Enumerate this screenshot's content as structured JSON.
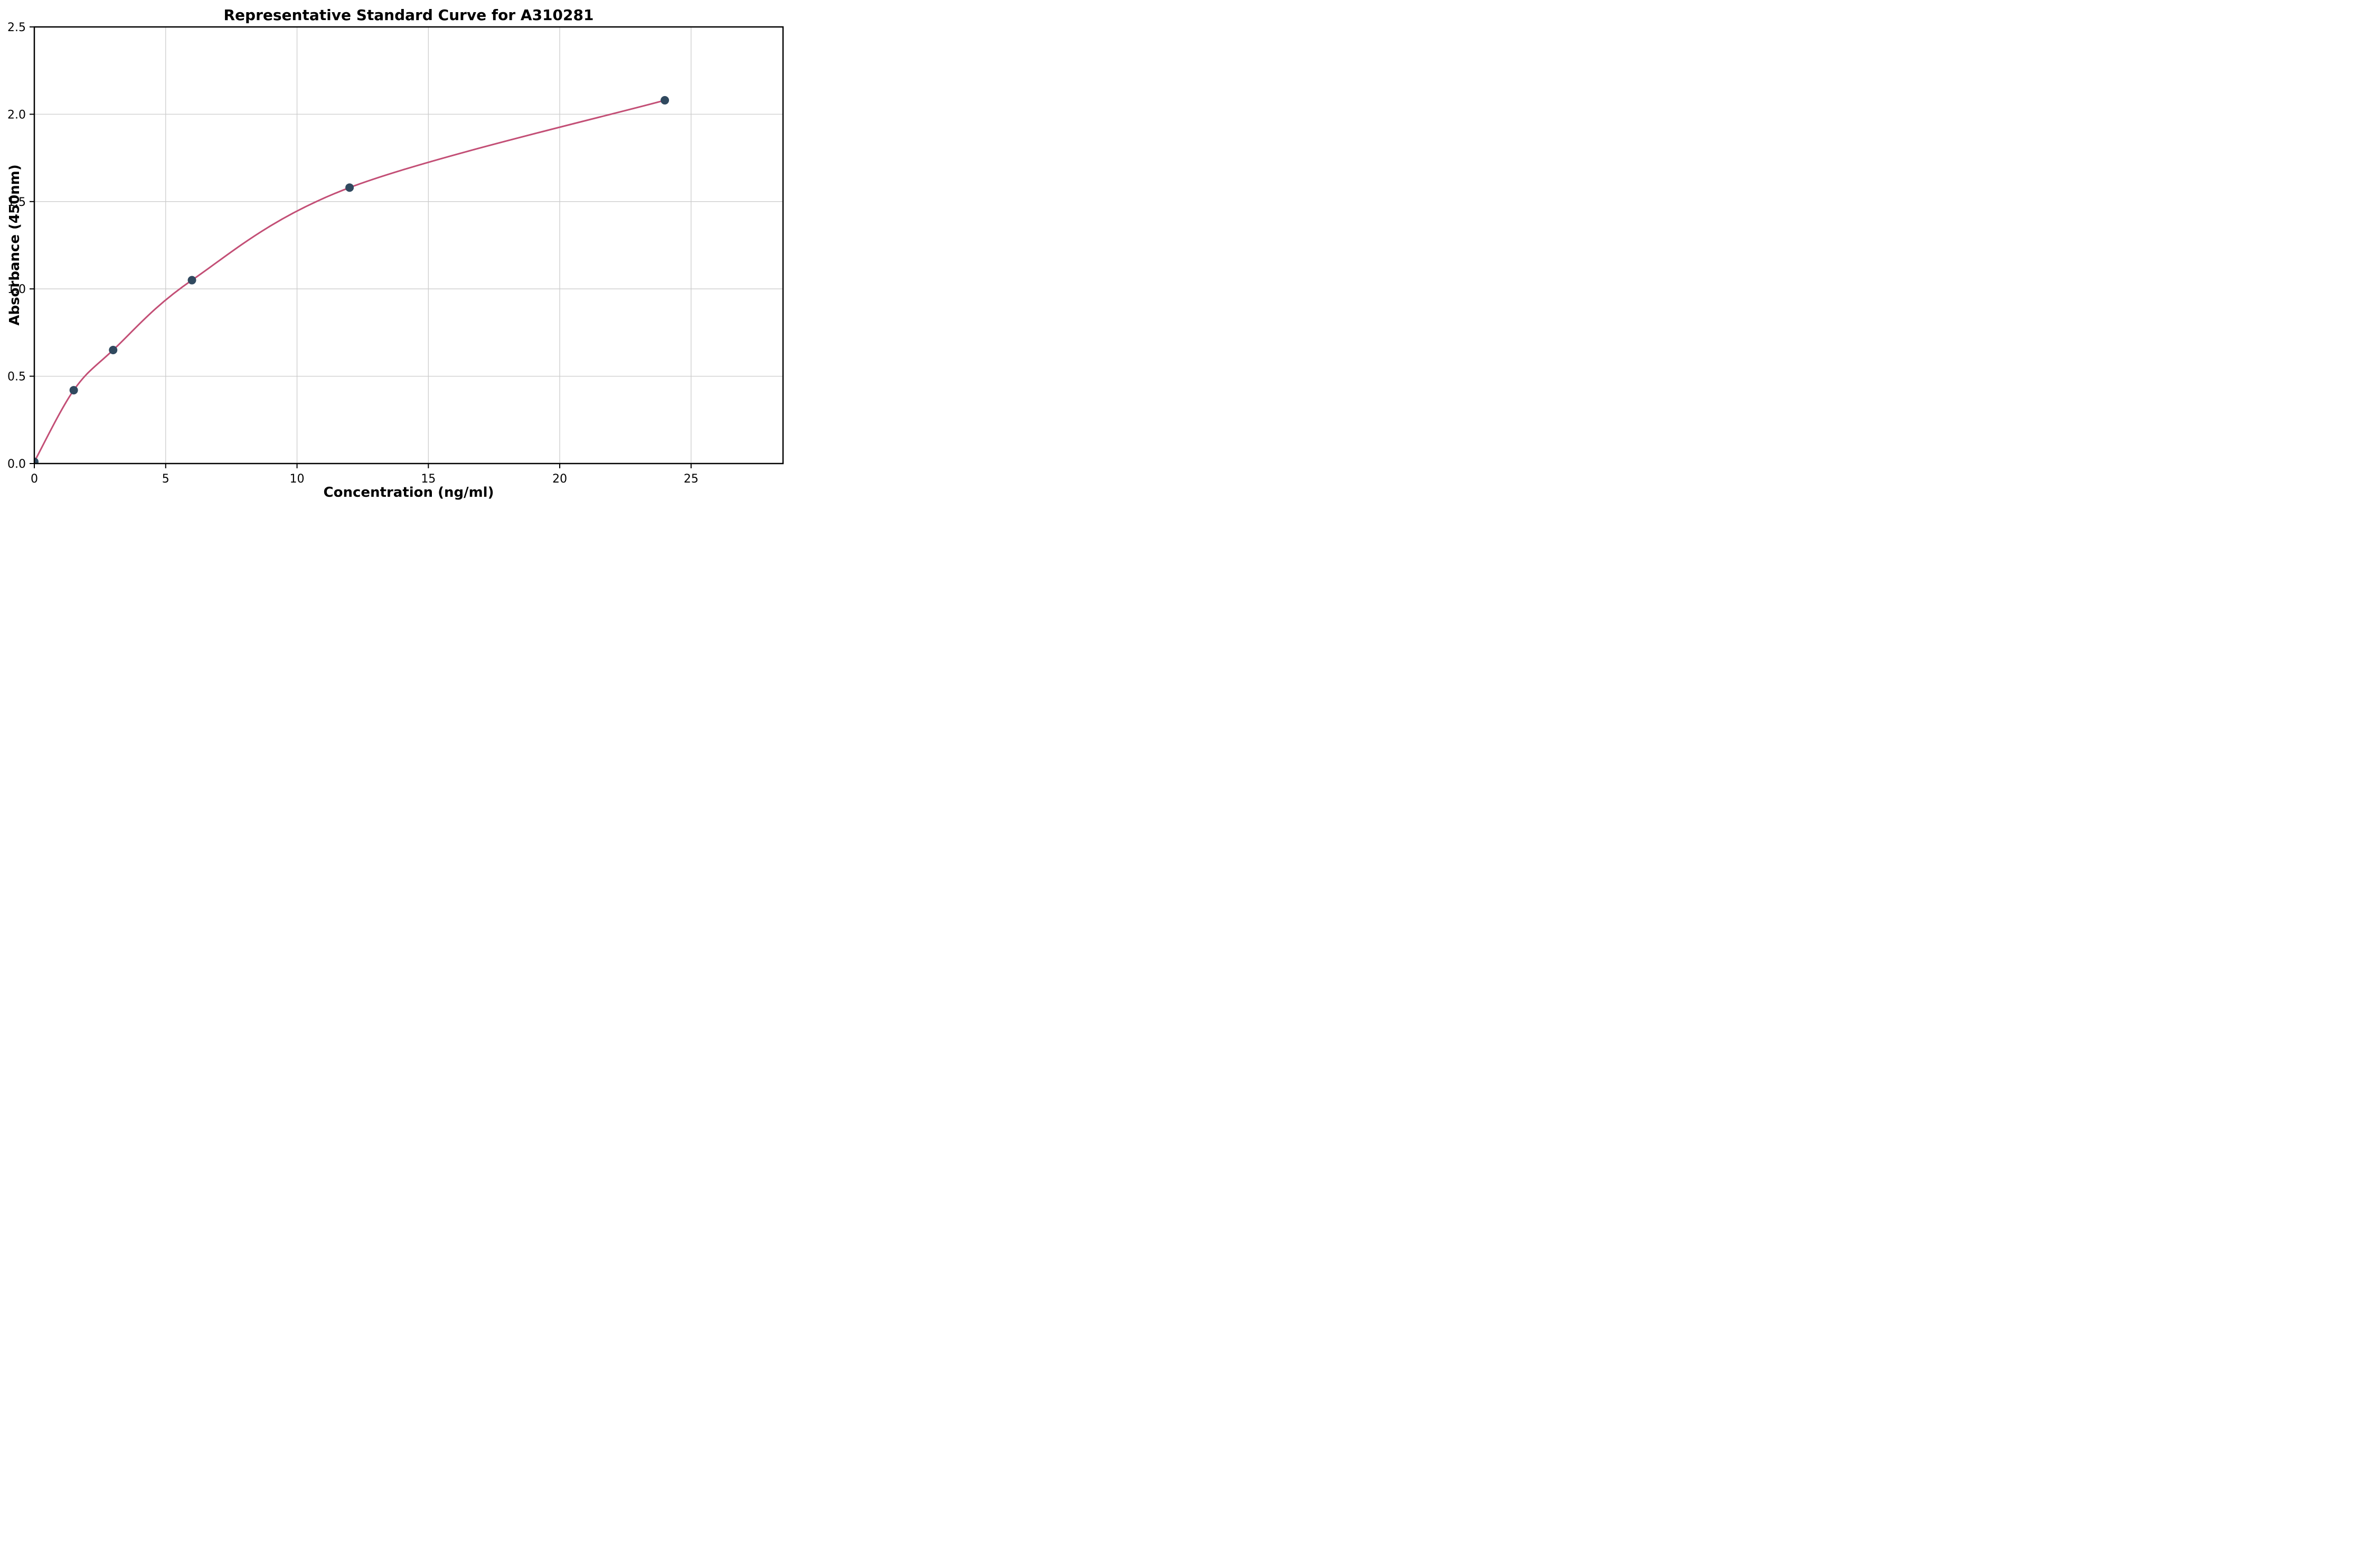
{
  "chart_data": {
    "type": "scatter",
    "title": "Representative Standard Curve for A310281",
    "xlabel": "Concentration (ng/ml)",
    "ylabel": "Absorbance (450nm)",
    "xlim": [
      0,
      28.5
    ],
    "ylim": [
      0,
      2.5
    ],
    "xticks": [
      {
        "value": 0,
        "label": "0"
      },
      {
        "value": 5,
        "label": "5"
      },
      {
        "value": 10,
        "label": "10"
      },
      {
        "value": 15,
        "label": "15"
      },
      {
        "value": 20,
        "label": "20"
      },
      {
        "value": 25,
        "label": "25"
      }
    ],
    "yticks": [
      {
        "value": 0.0,
        "label": "0.0"
      },
      {
        "value": 0.5,
        "label": "0.5"
      },
      {
        "value": 1.0,
        "label": "1.0"
      },
      {
        "value": 1.5,
        "label": "1.5"
      },
      {
        "value": 2.0,
        "label": "2.0"
      },
      {
        "value": 2.5,
        "label": "2.5"
      }
    ],
    "grid": true,
    "legend": "none",
    "points": [
      {
        "x": 0,
        "y": 0.01
      },
      {
        "x": 1.5,
        "y": 0.42
      },
      {
        "x": 3,
        "y": 0.65
      },
      {
        "x": 6,
        "y": 1.05
      },
      {
        "x": 12,
        "y": 1.58
      },
      {
        "x": 24,
        "y": 2.08
      }
    ],
    "fit_line_through_points": true,
    "colors": {
      "point": "#30495f",
      "line": "#c34f76",
      "grid": "#cccccc",
      "axis": "#000000",
      "background": "#ffffff"
    }
  }
}
